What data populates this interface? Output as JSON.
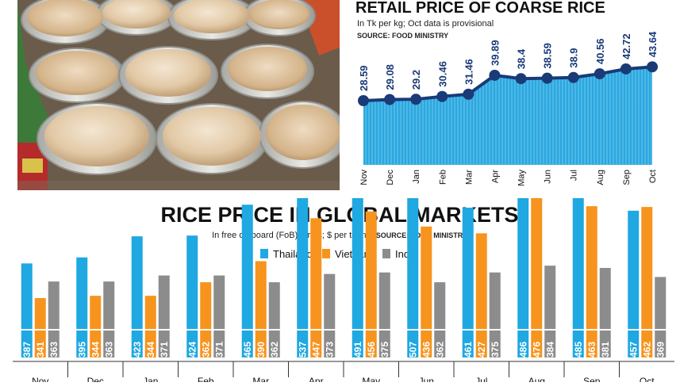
{
  "colors": {
    "line_fill": "#29a8e0",
    "line_stroke": "#1a3a78",
    "thailand": "#1fa8e1",
    "vietnam": "#f7941d",
    "india": "#8c8c8c"
  },
  "chart_data": [
    {
      "type": "area",
      "title": "RETAIL PRICE OF COARSE RICE",
      "subtitle": "In Tk per kg; Oct data is provisional",
      "source": "SOURCE: FOOD MINISTRY",
      "categories": [
        "Nov",
        "Dec",
        "Jan",
        "Feb",
        "Mar",
        "Apr",
        "May",
        "Jun",
        "Jul",
        "Aug",
        "Sep",
        "Oct"
      ],
      "values": [
        28.59,
        29.08,
        29.2,
        30.46,
        31.46,
        39.89,
        38.4,
        38.59,
        38.9,
        40.56,
        42.72,
        43.64
      ],
      "value_labels": [
        "28.59",
        "29.08",
        "29.2",
        "30.46",
        "31.46",
        "39.89",
        "38.4",
        "38.59",
        "38.9",
        "40.56",
        "42.72",
        "43.64"
      ],
      "ylim": [
        0,
        48
      ],
      "grid": false
    },
    {
      "type": "bar",
      "title": "RICE PRICE IN GLOBAL MARKETS",
      "subtitle": "In free on board (FoB) terms; $ per tonne;",
      "source": "SOURCE: FOOD MINISTRY",
      "legend_position": "top",
      "categories": [
        "Nov",
        "Dec",
        "Jan",
        "Feb",
        "Mar",
        "Apr",
        "May",
        "Jun",
        "Jul",
        "Aug",
        "Sep",
        "Oct"
      ],
      "series": [
        {
          "name": "Thailand",
          "values": [
            387,
            395,
            423,
            424,
            465,
            537,
            491,
            507,
            461,
            486,
            485,
            457
          ]
        },
        {
          "name": "Vietnam",
          "values": [
            341,
            344,
            344,
            362,
            390,
            447,
            456,
            436,
            427,
            476,
            463,
            462
          ]
        },
        {
          "name": "India",
          "values": [
            363,
            363,
            371,
            371,
            362,
            373,
            375,
            362,
            375,
            384,
            381,
            369
          ]
        }
      ],
      "ylim": [
        0,
        560
      ]
    }
  ]
}
